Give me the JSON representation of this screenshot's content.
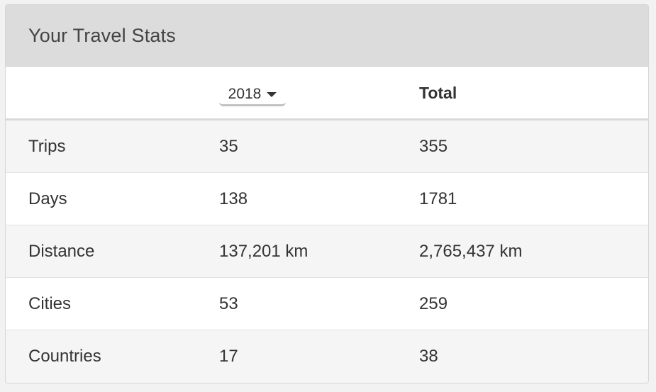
{
  "card": {
    "title": "Your Travel Stats"
  },
  "columns": {
    "year": "2018",
    "total": "Total"
  },
  "rows": [
    {
      "label": "Trips",
      "year_value": "35",
      "total_value": "355"
    },
    {
      "label": "Days",
      "year_value": "138",
      "total_value": "1781"
    },
    {
      "label": "Distance",
      "year_value": "137,201 km",
      "total_value": "2,765,437 km"
    },
    {
      "label": "Cities",
      "year_value": "53",
      "total_value": "259"
    },
    {
      "label": "Countries",
      "year_value": "17",
      "total_value": "38"
    }
  ],
  "icons": {
    "year_dropdown": "caret-down-icon"
  },
  "colors": {
    "header_bg": "#dcdcdc",
    "row_alt_bg": "#f5f5f5",
    "text": "#333333"
  }
}
